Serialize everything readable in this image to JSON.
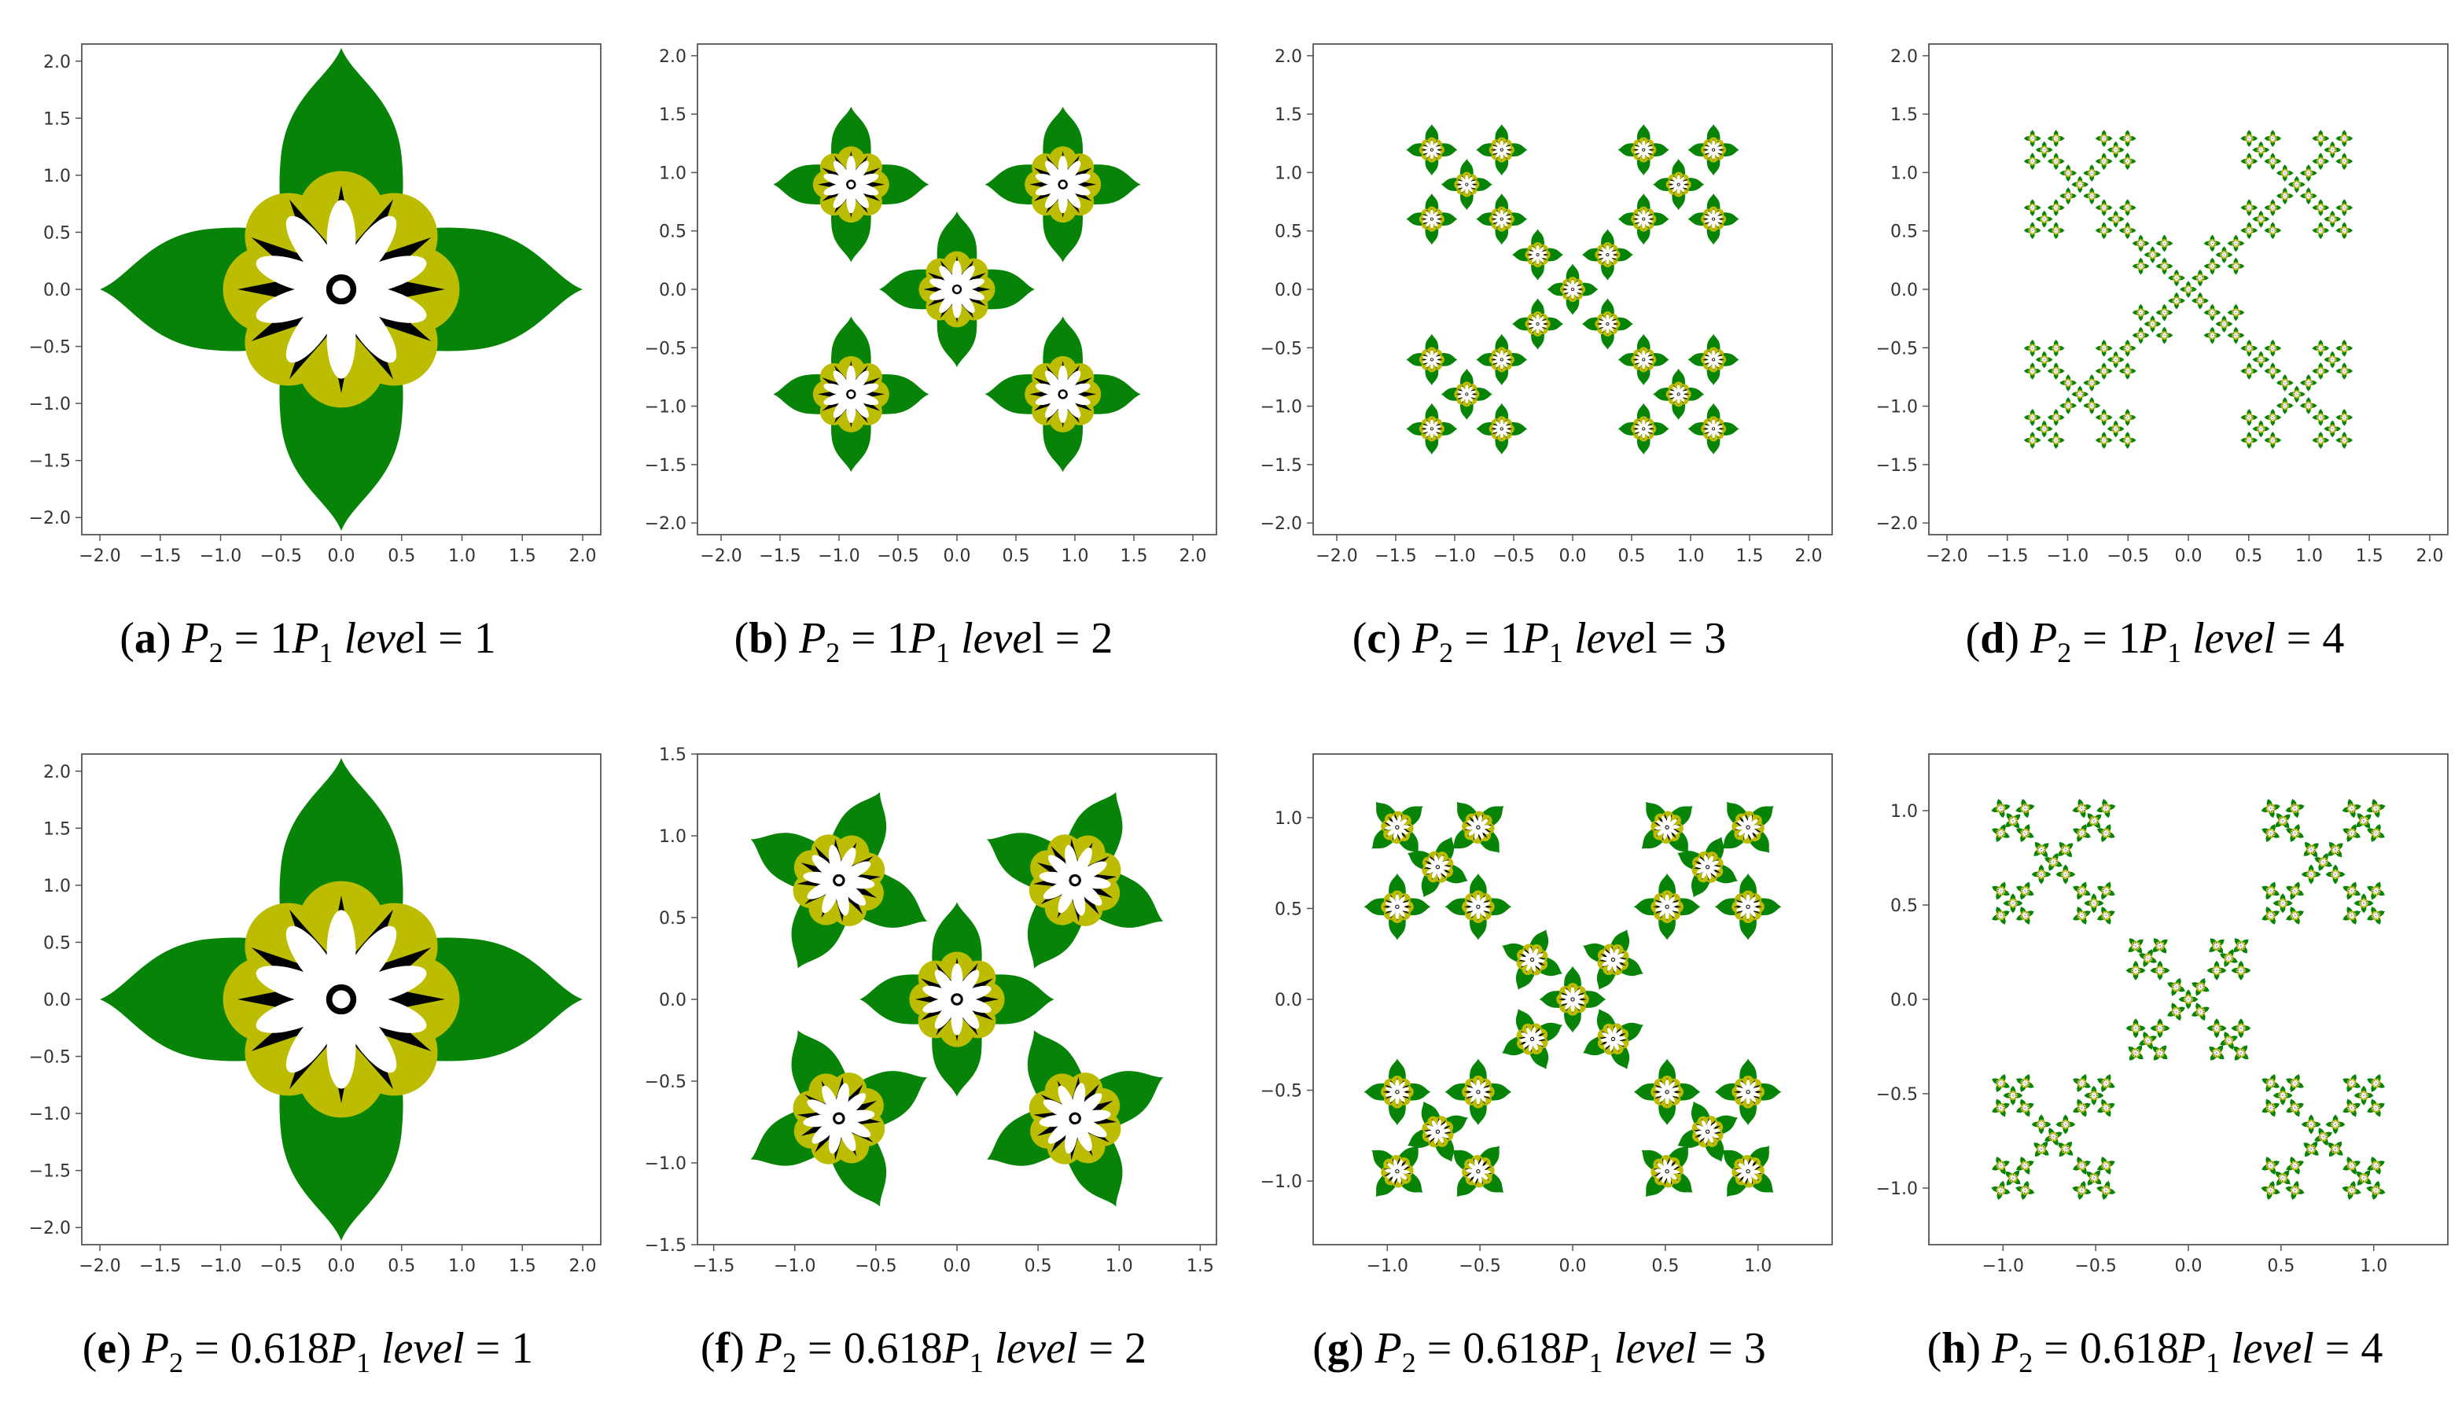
{
  "colors": {
    "leaf": "#078407",
    "ring": "#bcbc00",
    "star": "#000000",
    "petal": "#ffffff",
    "frame": "#555555"
  },
  "chart_data": [
    {
      "id": "a",
      "type": "scatter",
      "ratio": "1",
      "level": 1,
      "caption": {
        "tag": "a",
        "pre": "P",
        "sub": "2",
        "eq": " = 1",
        "p": "P",
        "psub": "1",
        "lvl": "leve",
        "lvlTail": "l = 1"
      },
      "xlim": [
        -2.15,
        2.15
      ],
      "ylim": [
        -2.15,
        2.15
      ],
      "xticks": [
        -2.0,
        -1.5,
        -1.0,
        -0.5,
        0.0,
        0.5,
        1.0,
        1.5,
        2.0
      ],
      "yticks": [
        -2.0,
        -1.5,
        -1.0,
        -0.5,
        0.0,
        0.5,
        1.0,
        1.5,
        2.0
      ]
    },
    {
      "id": "b",
      "type": "scatter",
      "ratio": "1",
      "level": 2,
      "caption": {
        "tag": "b",
        "pre": "P",
        "sub": "2",
        "eq": " = 1",
        "p": "P",
        "psub": "1",
        "lvl": "leve",
        "lvlTail": "l = 2"
      },
      "xlim": [
        -2.2,
        2.2
      ],
      "ylim": [
        -2.1,
        2.1
      ],
      "xticks": [
        -2.0,
        -1.5,
        -1.0,
        -0.5,
        0.0,
        0.5,
        1.0,
        1.5,
        2.0
      ],
      "yticks": [
        -2.0,
        -1.5,
        -1.0,
        -0.5,
        0.0,
        0.5,
        1.0,
        1.5,
        2.0
      ]
    },
    {
      "id": "c",
      "type": "scatter",
      "ratio": "1",
      "level": 3,
      "caption": {
        "tag": "c",
        "pre": "P",
        "sub": "2",
        "eq": " = 1",
        "p": "P",
        "psub": "1",
        "lvl": "leve",
        "lvlTail": "l = 3"
      },
      "xlim": [
        -2.2,
        2.2
      ],
      "ylim": [
        -2.1,
        2.1
      ],
      "xticks": [
        -2.0,
        -1.5,
        -1.0,
        -0.5,
        0.0,
        0.5,
        1.0,
        1.5,
        2.0
      ],
      "yticks": [
        -2.0,
        -1.5,
        -1.0,
        -0.5,
        0.0,
        0.5,
        1.0,
        1.5,
        2.0
      ]
    },
    {
      "id": "d",
      "type": "scatter",
      "ratio": "1",
      "level": 4,
      "caption": {
        "tag": "d",
        "pre": "P",
        "sub": "2",
        "eq": " = 1",
        "p": "P",
        "psub": "1",
        "lvl": "level",
        "lvlTail": " = 4"
      },
      "xlim": [
        -2.15,
        2.15
      ],
      "ylim": [
        -2.1,
        2.1
      ],
      "xticks": [
        -2.0,
        -1.5,
        -1.0,
        -0.5,
        0.0,
        0.5,
        1.0,
        1.5,
        2.0
      ],
      "yticks": [
        -2.0,
        -1.5,
        -1.0,
        -0.5,
        0.0,
        0.5,
        1.0,
        1.5,
        2.0
      ]
    },
    {
      "id": "e",
      "type": "scatter",
      "ratio": "0.618",
      "level": 1,
      "caption": {
        "tag": "e",
        "pre": "P",
        "sub": "2",
        "eq": " = 0.618",
        "p": "P",
        "psub": "1",
        "lvl": "level",
        "lvlTail": " = 1"
      },
      "xlim": [
        -2.15,
        2.15
      ],
      "ylim": [
        -2.15,
        2.15
      ],
      "xticks": [
        -2.0,
        -1.5,
        -1.0,
        -0.5,
        0.0,
        0.5,
        1.0,
        1.5,
        2.0
      ],
      "yticks": [
        -2.0,
        -1.5,
        -1.0,
        -0.5,
        0.0,
        0.5,
        1.0,
        1.5,
        2.0
      ]
    },
    {
      "id": "f",
      "type": "scatter",
      "ratio": "0.618",
      "level": 2,
      "caption": {
        "tag": "f",
        "pre": "P",
        "sub": "2",
        "eq": " = 0.618",
        "p": "P",
        "psub": "1",
        "lvl": "level",
        "lvlTail": " = 2"
      },
      "xlim": [
        -1.6,
        1.6
      ],
      "ylim": [
        -1.5,
        1.5
      ],
      "xticks": [
        -1.5,
        -1.0,
        -0.5,
        0.0,
        0.5,
        1.0,
        1.5
      ],
      "yticks": [
        -1.5,
        -1.0,
        -0.5,
        0.0,
        0.5,
        1.0,
        1.5
      ]
    },
    {
      "id": "g",
      "type": "scatter",
      "ratio": "0.618",
      "level": 3,
      "caption": {
        "tag": "g",
        "pre": "P",
        "sub": "2",
        "eq": " = 0.618",
        "p": "P",
        "psub": "1",
        "lvl": "level",
        "lvlTail": " = 3"
      },
      "xlim": [
        -1.4,
        1.4
      ],
      "ylim": [
        -1.35,
        1.35
      ],
      "xticks": [
        -1.0,
        -0.5,
        0.0,
        0.5,
        1.0
      ],
      "yticks": [
        -1.0,
        -0.5,
        0.0,
        0.5,
        1.0
      ]
    },
    {
      "id": "h",
      "type": "scatter",
      "ratio": "0.618",
      "level": 4,
      "caption": {
        "tag": "h",
        "pre": "P",
        "sub": "2",
        "eq": " = 0.618",
        "p": "P",
        "psub": "1",
        "lvl": "level",
        "lvlTail": " = 4"
      },
      "xlim": [
        -1.4,
        1.4
      ],
      "ylim": [
        -1.3,
        1.3
      ],
      "xticks": [
        -1.0,
        -0.5,
        0.0,
        0.5,
        1.0
      ],
      "yticks": [
        -1.0,
        -0.5,
        0.0,
        0.5,
        1.0
      ]
    }
  ]
}
